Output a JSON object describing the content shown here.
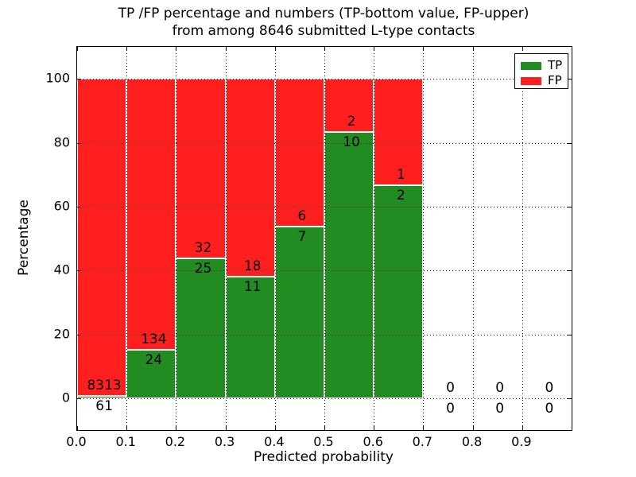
{
  "title": {
    "line1": "TP /FP percentage and numbers (TP-bottom value, FP-upper)",
    "line2": "from among 8646 submitted L-type contacts"
  },
  "axes": {
    "xlabel": "Predicted probability",
    "ylabel": "Percentage",
    "xlim": [
      0.0,
      1.0
    ],
    "ylim": [
      -10,
      110
    ],
    "xticks": [
      {
        "value": 0.0,
        "label": "0.0"
      },
      {
        "value": 0.1,
        "label": "0.1"
      },
      {
        "value": 0.2,
        "label": "0.2"
      },
      {
        "value": 0.3,
        "label": "0.3"
      },
      {
        "value": 0.4,
        "label": "0.4"
      },
      {
        "value": 0.5,
        "label": "0.5"
      },
      {
        "value": 0.6,
        "label": "0.6"
      },
      {
        "value": 0.7,
        "label": "0.7"
      },
      {
        "value": 0.8,
        "label": "0.8"
      },
      {
        "value": 0.9,
        "label": "0.9"
      }
    ],
    "yticks": [
      {
        "value": 0,
        "label": "0"
      },
      {
        "value": 20,
        "label": "20"
      },
      {
        "value": 40,
        "label": "40"
      },
      {
        "value": 60,
        "label": "60"
      },
      {
        "value": 80,
        "label": "80"
      },
      {
        "value": 100,
        "label": "100"
      }
    ],
    "grid": true
  },
  "legend": {
    "position": "upper-right",
    "items": [
      {
        "label": "TP",
        "color": "#228b22"
      },
      {
        "label": "FP",
        "color": "#ff1f1f"
      }
    ]
  },
  "chart_data": {
    "type": "bar",
    "subtype": "stacked-percentage-histogram",
    "bin_width": 0.1,
    "categories": [
      "0.0-0.1",
      "0.1-0.2",
      "0.2-0.3",
      "0.3-0.4",
      "0.4-0.5",
      "0.5-0.6",
      "0.6-0.7",
      "0.7-0.8",
      "0.8-0.9",
      "0.9-1.0"
    ],
    "bins": [
      {
        "x0": 0.0,
        "tp": 61,
        "fp": 8313,
        "tp_pct": 0.73
      },
      {
        "x0": 0.1,
        "tp": 24,
        "fp": 134,
        "tp_pct": 15.19
      },
      {
        "x0": 0.2,
        "tp": 25,
        "fp": 32,
        "tp_pct": 43.86
      },
      {
        "x0": 0.3,
        "tp": 11,
        "fp": 18,
        "tp_pct": 37.93
      },
      {
        "x0": 0.4,
        "tp": 7,
        "fp": 6,
        "tp_pct": 53.85
      },
      {
        "x0": 0.5,
        "tp": 10,
        "fp": 2,
        "tp_pct": 83.33
      },
      {
        "x0": 0.6,
        "tp": 2,
        "fp": 1,
        "tp_pct": 66.67
      },
      {
        "x0": 0.7,
        "tp": 0,
        "fp": 0,
        "tp_pct": 0
      },
      {
        "x0": 0.8,
        "tp": 0,
        "fp": 0,
        "tp_pct": 0
      },
      {
        "x0": 0.9,
        "tp": 0,
        "fp": 0,
        "tp_pct": 0
      }
    ],
    "series": [
      {
        "name": "TP",
        "color": "#228b22",
        "values": [
          61,
          24,
          25,
          11,
          7,
          10,
          2,
          0,
          0,
          0
        ]
      },
      {
        "name": "FP",
        "color": "#ff1f1f",
        "values": [
          8313,
          134,
          32,
          18,
          6,
          2,
          1,
          0,
          0,
          0
        ]
      }
    ],
    "total_contacts": 8646,
    "annotation_rule": "TP count below TP-bar top, FP count above it"
  },
  "colors": {
    "background": "#ffffff",
    "grid": "#000000",
    "text": "#000000",
    "tp": "#228b22",
    "fp": "#ff1f1f"
  }
}
